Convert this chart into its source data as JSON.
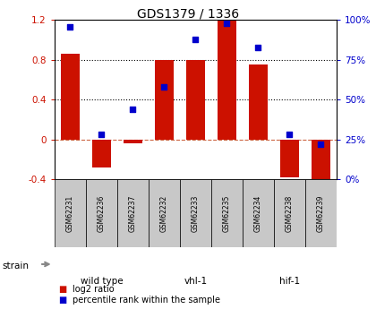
{
  "title": "GDS1379 / 1336",
  "samples": [
    "GSM62231",
    "GSM62236",
    "GSM62237",
    "GSM62232",
    "GSM62233",
    "GSM62235",
    "GSM62234",
    "GSM62238",
    "GSM62239"
  ],
  "log2_ratio": [
    0.86,
    -0.28,
    -0.04,
    0.8,
    0.8,
    1.2,
    0.75,
    -0.38,
    -0.42
  ],
  "percentile_rank": [
    96,
    28,
    44,
    58,
    88,
    98,
    83,
    28,
    22
  ],
  "groups": [
    {
      "label": "wild type",
      "start": 0,
      "end": 3,
      "color": "#c8f0b8"
    },
    {
      "label": "vhl-1",
      "start": 3,
      "end": 6,
      "color": "#a8e090"
    },
    {
      "label": "hif-1",
      "start": 6,
      "end": 9,
      "color": "#44bb33"
    }
  ],
  "bar_color": "#cc1100",
  "scatter_color": "#0000cc",
  "ylim_left": [
    -0.4,
    1.2
  ],
  "ylim_right": [
    0,
    100
  ],
  "yticks_left": [
    -0.4,
    0.0,
    0.4,
    0.8,
    1.2
  ],
  "ytick_labels_left": [
    "-0.4",
    "0",
    "0.4",
    "0.8",
    "1.2"
  ],
  "yticks_right": [
    0,
    25,
    50,
    75,
    100
  ],
  "ytick_labels_right": [
    "0%",
    "25%",
    "50%",
    "75%",
    "100%"
  ],
  "dotted_lines": [
    0.4,
    0.8
  ],
  "strain_label": "strain",
  "sample_box_color": "#c8c8c8",
  "legend_items": [
    {
      "label": "log2 ratio",
      "color": "#cc1100"
    },
    {
      "label": "percentile rank within the sample",
      "color": "#0000cc"
    }
  ]
}
